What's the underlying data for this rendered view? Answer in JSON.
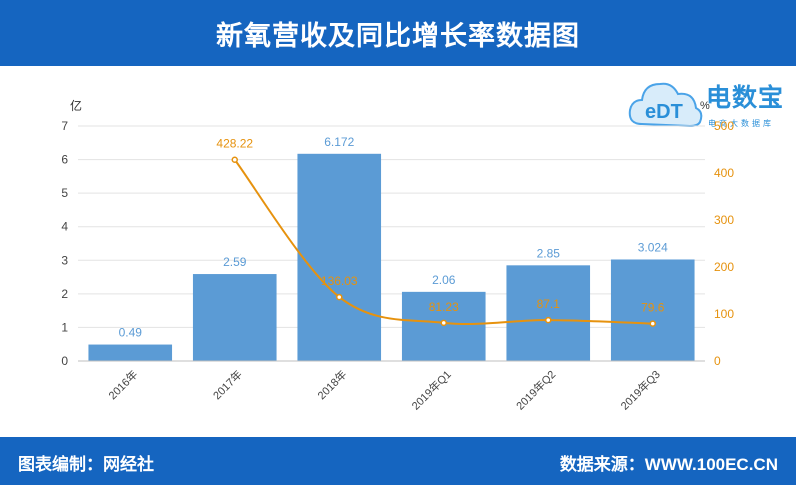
{
  "header": {
    "title": "新氧营收及同比增长率数据图"
  },
  "footer": {
    "left": "图表编制：网经社",
    "right": "数据来源：WWW.100EC.CN"
  },
  "logo": {
    "main": "电数宝",
    "cloud_text": "eDT",
    "sub": "电商大数据库"
  },
  "colors": {
    "bar": "#5b9bd5",
    "line": "#e6920e",
    "header": "#1565c0",
    "axis_right": "#e6920e",
    "bar_label": "#5b9bd5"
  },
  "chart_data": {
    "type": "bar",
    "categories": [
      "2016年",
      "2017年",
      "2018年",
      "2019年Q1",
      "2019年Q2",
      "2019年Q3"
    ],
    "series": [
      {
        "name": "",
        "type": "bar",
        "axis": "left",
        "values": [
          0.49,
          2.59,
          6.172,
          2.06,
          2.85,
          3.024
        ],
        "labels": [
          "0.49",
          "2.59",
          "6.172",
          "2.06",
          "2.85",
          "3.024"
        ]
      },
      {
        "name": "",
        "type": "line",
        "axis": "right",
        "values": [
          null,
          428.22,
          136.03,
          81.23,
          87.1,
          79.6
        ],
        "labels": [
          "",
          "428.22",
          "136.03",
          "81.23",
          "87.1",
          "79.6"
        ]
      }
    ],
    "ylabel": "亿",
    "y2label": "%",
    "ylim": [
      0,
      7
    ],
    "y2lim": [
      0,
      500
    ],
    "yticks": [
      "0",
      "1",
      "2",
      "3",
      "4",
      "5",
      "6",
      "7"
    ],
    "y2ticks": [
      "0",
      "100",
      "200",
      "300",
      "400",
      "500"
    ],
    "grid": true
  }
}
